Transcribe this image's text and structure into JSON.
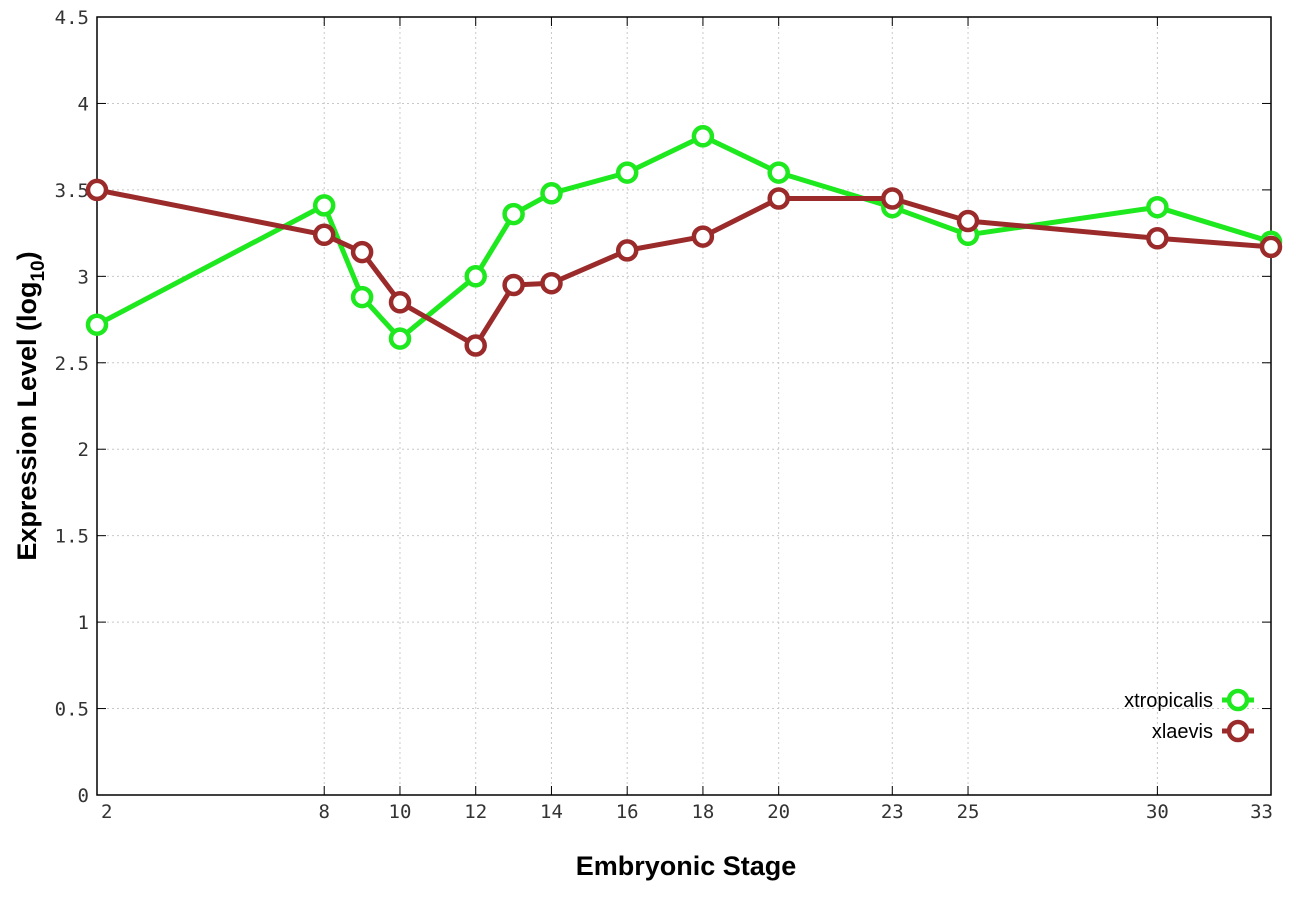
{
  "chart_data": {
    "type": "line",
    "xlabel": "Embryonic Stage",
    "ylabel_main": "Expression Level (log",
    "ylabel_sub": "10",
    "ylabel_close": ")",
    "x_ticks": [
      "2",
      "8",
      "10",
      "12",
      "14",
      "16",
      "18",
      "20",
      "23",
      "25",
      "30",
      "33"
    ],
    "y_ticks": [
      "0",
      "0.5",
      "1",
      "1.5",
      "2",
      "2.5",
      "3",
      "3.5",
      "4",
      "4.5"
    ],
    "xlim": [
      2,
      33
    ],
    "ylim": [
      0,
      4.5
    ],
    "grid": true,
    "legend_position": "bottom-right",
    "series": [
      {
        "name": "xtropicalis",
        "color": "#1ee81e",
        "x": [
          2,
          8,
          9,
          10,
          12,
          13,
          14,
          16,
          18,
          20,
          23,
          25,
          30,
          33
        ],
        "y": [
          2.72,
          3.41,
          2.88,
          2.64,
          3.0,
          3.36,
          3.48,
          3.6,
          3.81,
          3.6,
          3.4,
          3.24,
          3.4,
          3.2
        ]
      },
      {
        "name": "xlaevis",
        "color": "#9b2b2b",
        "x": [
          2,
          8,
          9,
          10,
          12,
          13,
          14,
          16,
          18,
          20,
          23,
          25,
          30,
          33
        ],
        "y": [
          3.5,
          3.24,
          3.14,
          2.85,
          2.6,
          2.95,
          2.96,
          3.15,
          3.23,
          3.45,
          3.45,
          3.32,
          3.22,
          3.17
        ]
      }
    ]
  }
}
